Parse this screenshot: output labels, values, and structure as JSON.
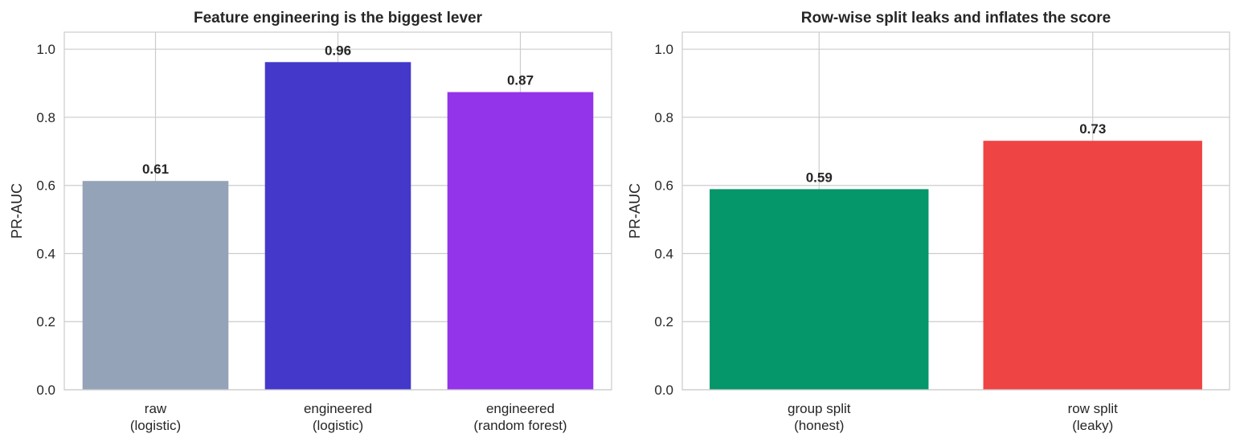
{
  "chart_data": [
    {
      "type": "bar",
      "title": "Feature engineering is the biggest lever",
      "xlabel": "",
      "ylabel": "PR-AUC",
      "ylim": [
        0,
        1.05
      ],
      "yticks": [
        "0.0",
        "0.2",
        "0.4",
        "0.6",
        "0.8",
        "1.0"
      ],
      "categories": [
        [
          "raw",
          "(logistic)"
        ],
        [
          "engineered",
          "(logistic)"
        ],
        [
          "engineered",
          "(random forest)"
        ]
      ],
      "values": [
        0.613,
        0.962,
        0.874
      ],
      "value_labels": [
        "0.61",
        "0.96",
        "0.87"
      ],
      "colors": [
        "#94a3b8",
        "#4338ca",
        "#9333ea"
      ],
      "grid": true
    },
    {
      "type": "bar",
      "title": "Row-wise split leaks and inflates the score",
      "xlabel": "",
      "ylabel": "PR-AUC",
      "ylim": [
        0,
        1.05
      ],
      "yticks": [
        "0.0",
        "0.2",
        "0.4",
        "0.6",
        "0.8",
        "1.0"
      ],
      "categories": [
        [
          "group split",
          "(honest)"
        ],
        [
          "row split",
          "(leaky)"
        ]
      ],
      "values": [
        0.589,
        0.731
      ],
      "value_labels": [
        "0.59",
        "0.73"
      ],
      "colors": [
        "#059669",
        "#ef4444"
      ],
      "grid": true
    }
  ]
}
